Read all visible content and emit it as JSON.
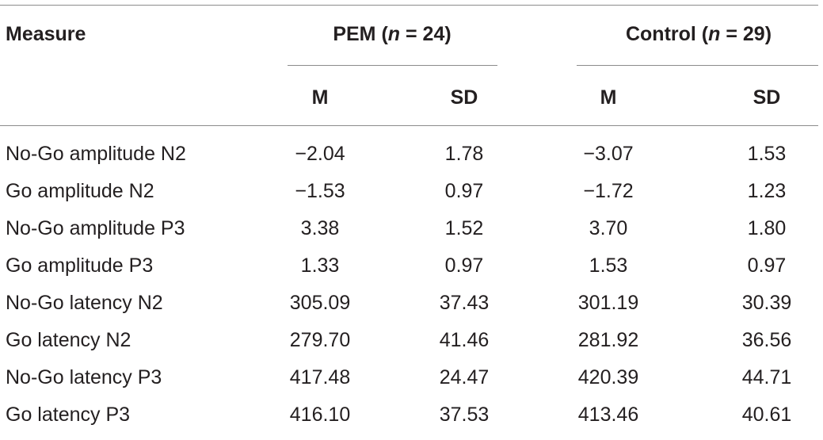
{
  "header": {
    "measure_label": "Measure",
    "pem": {
      "label": "PEM (",
      "n_var": "n",
      "n_rest": " = 24)"
    },
    "control": {
      "label": "Control (",
      "n_var": "n",
      "n_rest": " = 29)"
    },
    "m_label": "M",
    "sd_label": "SD"
  },
  "rows": [
    {
      "measure": "No-Go amplitude N2",
      "pem_m": "−2.04",
      "pem_sd": "1.78",
      "control_m": "−3.07",
      "control_sd": "1.53"
    },
    {
      "measure": "Go amplitude N2",
      "pem_m": "−1.53",
      "pem_sd": "0.97",
      "control_m": "−1.72",
      "control_sd": "1.23"
    },
    {
      "measure": "No-Go amplitude P3",
      "pem_m": "3.38",
      "pem_sd": "1.52",
      "control_m": "3.70",
      "control_sd": "1.80"
    },
    {
      "measure": "Go amplitude P3",
      "pem_m": "1.33",
      "pem_sd": "0.97",
      "control_m": "1.53",
      "control_sd": "0.97"
    },
    {
      "measure": "No-Go latency N2",
      "pem_m": "305.09",
      "pem_sd": "37.43",
      "control_m": "301.19",
      "control_sd": "30.39"
    },
    {
      "measure": "Go latency N2",
      "pem_m": "279.70",
      "pem_sd": "41.46",
      "control_m": "281.92",
      "control_sd": "36.56"
    },
    {
      "measure": "No-Go latency P3",
      "pem_m": "417.48",
      "pem_sd": "24.47",
      "control_m": "420.39",
      "control_sd": "44.71"
    },
    {
      "measure": "Go latency P3",
      "pem_m": "416.10",
      "pem_sd": "37.53",
      "control_m": "413.46",
      "control_sd": "40.61"
    }
  ]
}
